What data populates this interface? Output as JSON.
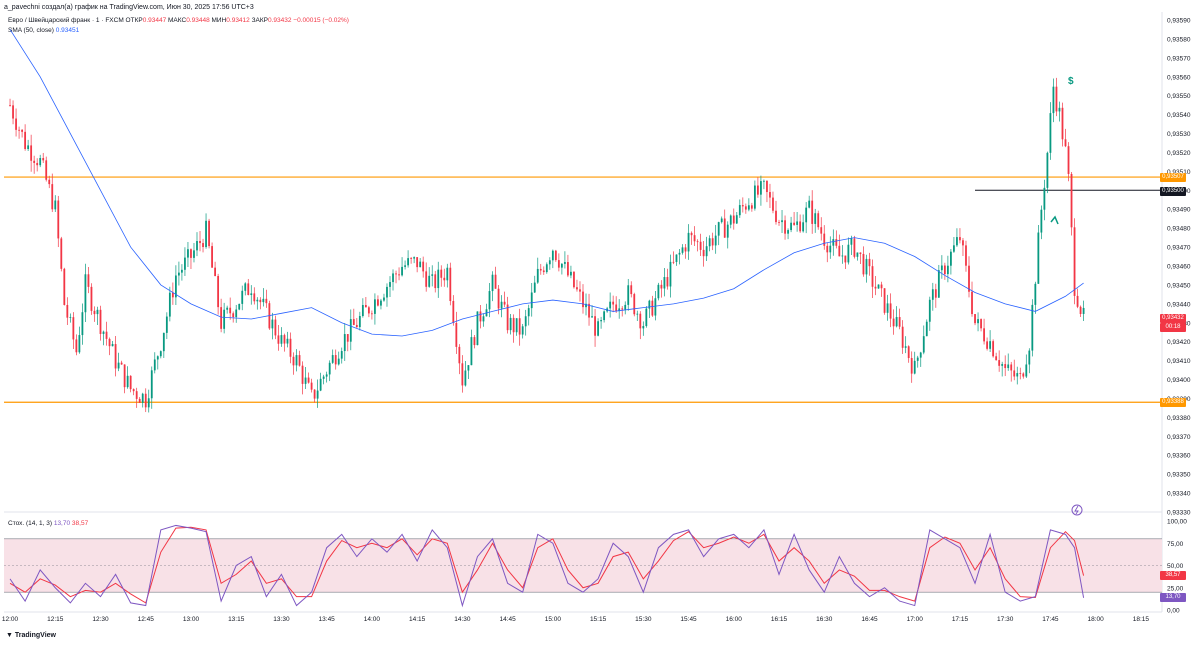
{
  "header": {
    "caption": "a_pavechni создал(а) график на TradingView.com, Июн 30, 2025 17:56 UTC+3"
  },
  "legend": {
    "symbol": "Евро / Швейцарский франк · 1 · FXCM",
    "open_label": "ОТКР",
    "open": "0.93447",
    "high_label": "МАКС",
    "high": "0.93448",
    "low_label": "МИН",
    "low": "0.93412",
    "close_label": "ЗАКР",
    "close": "0.93432",
    "change": "−0.00015 (−0.02%)"
  },
  "sma_legend": {
    "label": "SMA (50, close)",
    "value": "0.93451"
  },
  "stoch_legend": {
    "label": "Стох. (14, 1, 3)",
    "k": "13,70",
    "d": "38,57"
  },
  "price_axis": {
    "ticks": [
      "0,93590",
      "0,93580",
      "0,93570",
      "0,93560",
      "0,93550",
      "0,93540",
      "0,93530",
      "0,93520",
      "0,93510",
      "0,93500",
      "0,93490",
      "0,93480",
      "0,93470",
      "0,93460",
      "0,93450",
      "0,93440",
      "0,93430",
      "0,93420",
      "0,93410",
      "0,93400",
      "0,93390",
      "0,93380",
      "0,93370",
      "0,93360",
      "0,93350",
      "0,93340",
      "0,93330"
    ],
    "tag_upper": "0,93507",
    "tag_line": "0,93500",
    "tag_current": "0,93432",
    "tag_timer": "00:18",
    "tag_lower": "0,93388"
  },
  "stoch_axis": {
    "ticks": [
      "100,00",
      "75,00",
      "50,00",
      "25,00",
      "0,00"
    ],
    "tag_d": "38,57",
    "tag_k": "13,70"
  },
  "time_axis": {
    "ticks": [
      "12:00",
      "12:15",
      "12:30",
      "12:45",
      "13:00",
      "13:15",
      "13:30",
      "13:45",
      "14:00",
      "14:15",
      "14:30",
      "14:45",
      "15:00",
      "15:15",
      "15:30",
      "15:45",
      "16:00",
      "16:15",
      "16:30",
      "16:45",
      "17:00",
      "17:15",
      "17:30",
      "17:45",
      "18:00",
      "18:15"
    ]
  },
  "markers": {
    "dollar": "$"
  },
  "brand": "TradingView",
  "colors": {
    "up": "#089981",
    "down": "#f23645",
    "sma": "#2962ff",
    "level": "#ff9800",
    "stoch_k": "#7e57c2",
    "stoch_d": "#f23645",
    "stoch_band": "#f8e1e7"
  },
  "chart_data": {
    "type": "candlestick",
    "x_range": [
      "11:58",
      "18:22"
    ],
    "y_range": [
      0.9333,
      0.9359
    ],
    "horizontal_levels": [
      0.93507,
      0.935,
      0.93388
    ],
    "close_path": [
      {
        "t": "12:00",
        "v": 0.93545
      },
      {
        "t": "12:05",
        "v": 0.93525
      },
      {
        "t": "12:10",
        "v": 0.93515
      },
      {
        "t": "12:15",
        "v": 0.9349
      },
      {
        "t": "12:18",
        "v": 0.9344
      },
      {
        "t": "12:22",
        "v": 0.93415
      },
      {
        "t": "12:25",
        "v": 0.9345
      },
      {
        "t": "12:30",
        "v": 0.9343
      },
      {
        "t": "12:35",
        "v": 0.9341
      },
      {
        "t": "12:40",
        "v": 0.93395
      },
      {
        "t": "12:45",
        "v": 0.9339
      },
      {
        "t": "12:50",
        "v": 0.9342
      },
      {
        "t": "12:55",
        "v": 0.93455
      },
      {
        "t": "13:00",
        "v": 0.93465
      },
      {
        "t": "13:05",
        "v": 0.93478
      },
      {
        "t": "13:10",
        "v": 0.9343
      },
      {
        "t": "13:15",
        "v": 0.9344
      },
      {
        "t": "13:20",
        "v": 0.9345
      },
      {
        "t": "13:25",
        "v": 0.93435
      },
      {
        "t": "13:30",
        "v": 0.9342
      },
      {
        "t": "13:35",
        "v": 0.9341
      },
      {
        "t": "13:40",
        "v": 0.9339
      },
      {
        "t": "13:45",
        "v": 0.93405
      },
      {
        "t": "13:50",
        "v": 0.9342
      },
      {
        "t": "13:55",
        "v": 0.9343
      },
      {
        "t": "14:00",
        "v": 0.9344
      },
      {
        "t": "14:05",
        "v": 0.9345
      },
      {
        "t": "14:10",
        "v": 0.9346
      },
      {
        "t": "14:15",
        "v": 0.93462
      },
      {
        "t": "14:20",
        "v": 0.9345
      },
      {
        "t": "14:25",
        "v": 0.93458
      },
      {
        "t": "14:30",
        "v": 0.934
      },
      {
        "t": "14:35",
        "v": 0.9343
      },
      {
        "t": "14:40",
        "v": 0.9345
      },
      {
        "t": "14:45",
        "v": 0.9343
      },
      {
        "t": "14:50",
        "v": 0.93425
      },
      {
        "t": "14:55",
        "v": 0.93455
      },
      {
        "t": "15:00",
        "v": 0.9347
      },
      {
        "t": "15:05",
        "v": 0.93455
      },
      {
        "t": "15:10",
        "v": 0.9344
      },
      {
        "t": "15:15",
        "v": 0.93425
      },
      {
        "t": "15:20",
        "v": 0.9344
      },
      {
        "t": "15:25",
        "v": 0.93445
      },
      {
        "t": "15:30",
        "v": 0.9343
      },
      {
        "t": "15:35",
        "v": 0.93445
      },
      {
        "t": "15:40",
        "v": 0.9346
      },
      {
        "t": "15:45",
        "v": 0.93475
      },
      {
        "t": "15:50",
        "v": 0.9347
      },
      {
        "t": "15:55",
        "v": 0.93478
      },
      {
        "t": "16:00",
        "v": 0.93485
      },
      {
        "t": "16:05",
        "v": 0.93495
      },
      {
        "t": "16:10",
        "v": 0.935
      },
      {
        "t": "16:15",
        "v": 0.93485
      },
      {
        "t": "16:20",
        "v": 0.9348
      },
      {
        "t": "16:25",
        "v": 0.9349
      },
      {
        "t": "16:30",
        "v": 0.93475
      },
      {
        "t": "16:35",
        "v": 0.93465
      },
      {
        "t": "16:40",
        "v": 0.9347
      },
      {
        "t": "16:45",
        "v": 0.93455
      },
      {
        "t": "16:50",
        "v": 0.9344
      },
      {
        "t": "16:55",
        "v": 0.93425
      },
      {
        "t": "17:00",
        "v": 0.93405
      },
      {
        "t": "17:05",
        "v": 0.9344
      },
      {
        "t": "17:10",
        "v": 0.9346
      },
      {
        "t": "17:15",
        "v": 0.93475
      },
      {
        "t": "17:20",
        "v": 0.9343
      },
      {
        "t": "17:25",
        "v": 0.9342
      },
      {
        "t": "17:30",
        "v": 0.93405
      },
      {
        "t": "17:35",
        "v": 0.934
      },
      {
        "t": "17:38",
        "v": 0.9342
      },
      {
        "t": "17:42",
        "v": 0.9349
      },
      {
        "t": "17:44",
        "v": 0.9352
      },
      {
        "t": "17:46",
        "v": 0.93555
      },
      {
        "t": "17:48",
        "v": 0.9354
      },
      {
        "t": "17:50",
        "v": 0.9352
      },
      {
        "t": "17:51",
        "v": 0.93505
      },
      {
        "t": "17:53",
        "v": 0.9345
      },
      {
        "t": "17:56",
        "v": 0.93432
      }
    ],
    "sma_path": [
      {
        "t": "12:00",
        "v": 0.93585
      },
      {
        "t": "12:10",
        "v": 0.9356
      },
      {
        "t": "12:20",
        "v": 0.9353
      },
      {
        "t": "12:30",
        "v": 0.935
      },
      {
        "t": "12:40",
        "v": 0.9347
      },
      {
        "t": "12:50",
        "v": 0.9345
      },
      {
        "t": "13:00",
        "v": 0.9344
      },
      {
        "t": "13:10",
        "v": 0.93433
      },
      {
        "t": "13:20",
        "v": 0.93432
      },
      {
        "t": "13:30",
        "v": 0.93435
      },
      {
        "t": "13:40",
        "v": 0.93438
      },
      {
        "t": "13:50",
        "v": 0.9343
      },
      {
        "t": "14:00",
        "v": 0.93424
      },
      {
        "t": "14:10",
        "v": 0.93423
      },
      {
        "t": "14:20",
        "v": 0.93426
      },
      {
        "t": "14:30",
        "v": 0.93432
      },
      {
        "t": "14:40",
        "v": 0.93436
      },
      {
        "t": "14:50",
        "v": 0.9344
      },
      {
        "t": "15:00",
        "v": 0.93442
      },
      {
        "t": "15:10",
        "v": 0.9344
      },
      {
        "t": "15:20",
        "v": 0.93436
      },
      {
        "t": "15:30",
        "v": 0.93438
      },
      {
        "t": "15:40",
        "v": 0.9344
      },
      {
        "t": "15:50",
        "v": 0.93443
      },
      {
        "t": "16:00",
        "v": 0.93448
      },
      {
        "t": "16:10",
        "v": 0.93458
      },
      {
        "t": "16:20",
        "v": 0.93467
      },
      {
        "t": "16:30",
        "v": 0.93472
      },
      {
        "t": "16:40",
        "v": 0.93475
      },
      {
        "t": "16:50",
        "v": 0.93472
      },
      {
        "t": "17:00",
        "v": 0.93465
      },
      {
        "t": "17:10",
        "v": 0.93455
      },
      {
        "t": "17:20",
        "v": 0.93446
      },
      {
        "t": "17:30",
        "v": 0.9344
      },
      {
        "t": "17:40",
        "v": 0.93436
      },
      {
        "t": "17:50",
        "v": 0.93444
      },
      {
        "t": "17:56",
        "v": 0.93451
      }
    ],
    "stoch_k": [
      {
        "t": "12:00",
        "v": 35
      },
      {
        "t": "12:05",
        "v": 10
      },
      {
        "t": "12:10",
        "v": 45
      },
      {
        "t": "12:15",
        "v": 25
      },
      {
        "t": "12:20",
        "v": 8
      },
      {
        "t": "12:25",
        "v": 30
      },
      {
        "t": "12:30",
        "v": 15
      },
      {
        "t": "12:35",
        "v": 40
      },
      {
        "t": "12:40",
        "v": 8
      },
      {
        "t": "12:45",
        "v": 5
      },
      {
        "t": "12:50",
        "v": 90
      },
      {
        "t": "12:55",
        "v": 95
      },
      {
        "t": "13:00",
        "v": 92
      },
      {
        "t": "13:05",
        "v": 88
      },
      {
        "t": "13:10",
        "v": 10
      },
      {
        "t": "13:15",
        "v": 50
      },
      {
        "t": "13:20",
        "v": 60
      },
      {
        "t": "13:25",
        "v": 15
      },
      {
        "t": "13:30",
        "v": 40
      },
      {
        "t": "13:35",
        "v": 5
      },
      {
        "t": "13:40",
        "v": 20
      },
      {
        "t": "13:45",
        "v": 70
      },
      {
        "t": "13:50",
        "v": 85
      },
      {
        "t": "13:55",
        "v": 60
      },
      {
        "t": "14:00",
        "v": 80
      },
      {
        "t": "14:05",
        "v": 65
      },
      {
        "t": "14:10",
        "v": 85
      },
      {
        "t": "14:15",
        "v": 55
      },
      {
        "t": "14:20",
        "v": 90
      },
      {
        "t": "14:25",
        "v": 70
      },
      {
        "t": "14:30",
        "v": 5
      },
      {
        "t": "14:35",
        "v": 60
      },
      {
        "t": "14:40",
        "v": 80
      },
      {
        "t": "14:45",
        "v": 30
      },
      {
        "t": "14:50",
        "v": 20
      },
      {
        "t": "14:55",
        "v": 85
      },
      {
        "t": "15:00",
        "v": 75
      },
      {
        "t": "15:05",
        "v": 30
      },
      {
        "t": "15:10",
        "v": 20
      },
      {
        "t": "15:15",
        "v": 35
      },
      {
        "t": "15:20",
        "v": 75
      },
      {
        "t": "15:25",
        "v": 60
      },
      {
        "t": "15:30",
        "v": 20
      },
      {
        "t": "15:35",
        "v": 70
      },
      {
        "t": "15:40",
        "v": 85
      },
      {
        "t": "15:45",
        "v": 90
      },
      {
        "t": "15:50",
        "v": 60
      },
      {
        "t": "15:55",
        "v": 80
      },
      {
        "t": "16:00",
        "v": 85
      },
      {
        "t": "16:05",
        "v": 70
      },
      {
        "t": "16:10",
        "v": 90
      },
      {
        "t": "16:15",
        "v": 40
      },
      {
        "t": "16:20",
        "v": 85
      },
      {
        "t": "16:25",
        "v": 45
      },
      {
        "t": "16:30",
        "v": 20
      },
      {
        "t": "16:35",
        "v": 60
      },
      {
        "t": "16:40",
        "v": 30
      },
      {
        "t": "16:45",
        "v": 15
      },
      {
        "t": "16:50",
        "v": 25
      },
      {
        "t": "16:55",
        "v": 10
      },
      {
        "t": "17:00",
        "v": 5
      },
      {
        "t": "17:05",
        "v": 90
      },
      {
        "t": "17:10",
        "v": 80
      },
      {
        "t": "17:15",
        "v": 70
      },
      {
        "t": "17:20",
        "v": 30
      },
      {
        "t": "17:25",
        "v": 85
      },
      {
        "t": "17:30",
        "v": 20
      },
      {
        "t": "17:35",
        "v": 10
      },
      {
        "t": "17:40",
        "v": 15
      },
      {
        "t": "17:45",
        "v": 90
      },
      {
        "t": "17:50",
        "v": 85
      },
      {
        "t": "17:53",
        "v": 70
      },
      {
        "t": "17:56",
        "v": 13.7
      }
    ],
    "stoch_d": [
      {
        "t": "12:00",
        "v": 30
      },
      {
        "t": "12:05",
        "v": 20
      },
      {
        "t": "12:10",
        "v": 35
      },
      {
        "t": "12:15",
        "v": 28
      },
      {
        "t": "12:20",
        "v": 15
      },
      {
        "t": "12:25",
        "v": 22
      },
      {
        "t": "12:30",
        "v": 20
      },
      {
        "t": "12:35",
        "v": 30
      },
      {
        "t": "12:40",
        "v": 18
      },
      {
        "t": "12:45",
        "v": 8
      },
      {
        "t": "12:50",
        "v": 65
      },
      {
        "t": "12:55",
        "v": 92
      },
      {
        "t": "13:00",
        "v": 93
      },
      {
        "t": "13:05",
        "v": 90
      },
      {
        "t": "13:10",
        "v": 30
      },
      {
        "t": "13:15",
        "v": 40
      },
      {
        "t": "13:20",
        "v": 55
      },
      {
        "t": "13:25",
        "v": 30
      },
      {
        "t": "13:30",
        "v": 35
      },
      {
        "t": "13:35",
        "v": 15
      },
      {
        "t": "13:40",
        "v": 15
      },
      {
        "t": "13:45",
        "v": 55
      },
      {
        "t": "13:50",
        "v": 78
      },
      {
        "t": "13:55",
        "v": 70
      },
      {
        "t": "14:00",
        "v": 75
      },
      {
        "t": "14:05",
        "v": 70
      },
      {
        "t": "14:10",
        "v": 80
      },
      {
        "t": "14:15",
        "v": 62
      },
      {
        "t": "14:20",
        "v": 80
      },
      {
        "t": "14:25",
        "v": 75
      },
      {
        "t": "14:30",
        "v": 20
      },
      {
        "t": "14:35",
        "v": 45
      },
      {
        "t": "14:40",
        "v": 75
      },
      {
        "t": "14:45",
        "v": 45
      },
      {
        "t": "14:50",
        "v": 25
      },
      {
        "t": "14:55",
        "v": 70
      },
      {
        "t": "15:00",
        "v": 80
      },
      {
        "t": "15:05",
        "v": 45
      },
      {
        "t": "15:10",
        "v": 25
      },
      {
        "t": "15:15",
        "v": 30
      },
      {
        "t": "15:20",
        "v": 60
      },
      {
        "t": "15:25",
        "v": 65
      },
      {
        "t": "15:30",
        "v": 35
      },
      {
        "t": "15:35",
        "v": 55
      },
      {
        "t": "15:40",
        "v": 78
      },
      {
        "t": "15:45",
        "v": 88
      },
      {
        "t": "15:50",
        "v": 70
      },
      {
        "t": "15:55",
        "v": 75
      },
      {
        "t": "16:00",
        "v": 82
      },
      {
        "t": "16:05",
        "v": 75
      },
      {
        "t": "16:10",
        "v": 85
      },
      {
        "t": "16:15",
        "v": 55
      },
      {
        "t": "16:20",
        "v": 70
      },
      {
        "t": "16:25",
        "v": 55
      },
      {
        "t": "16:30",
        "v": 30
      },
      {
        "t": "16:35",
        "v": 45
      },
      {
        "t": "16:40",
        "v": 38
      },
      {
        "t": "16:45",
        "v": 22
      },
      {
        "t": "16:50",
        "v": 22
      },
      {
        "t": "16:55",
        "v": 15
      },
      {
        "t": "17:00",
        "v": 10
      },
      {
        "t": "17:05",
        "v": 70
      },
      {
        "t": "17:10",
        "v": 82
      },
      {
        "t": "17:15",
        "v": 75
      },
      {
        "t": "17:20",
        "v": 45
      },
      {
        "t": "17:25",
        "v": 70
      },
      {
        "t": "17:30",
        "v": 35
      },
      {
        "t": "17:35",
        "v": 15
      },
      {
        "t": "17:40",
        "v": 14
      },
      {
        "t": "17:45",
        "v": 70
      },
      {
        "t": "17:50",
        "v": 88
      },
      {
        "t": "17:53",
        "v": 78
      },
      {
        "t": "17:56",
        "v": 38.57
      }
    ],
    "stoch_range": [
      0,
      100
    ],
    "stoch_band": [
      20,
      80
    ]
  }
}
